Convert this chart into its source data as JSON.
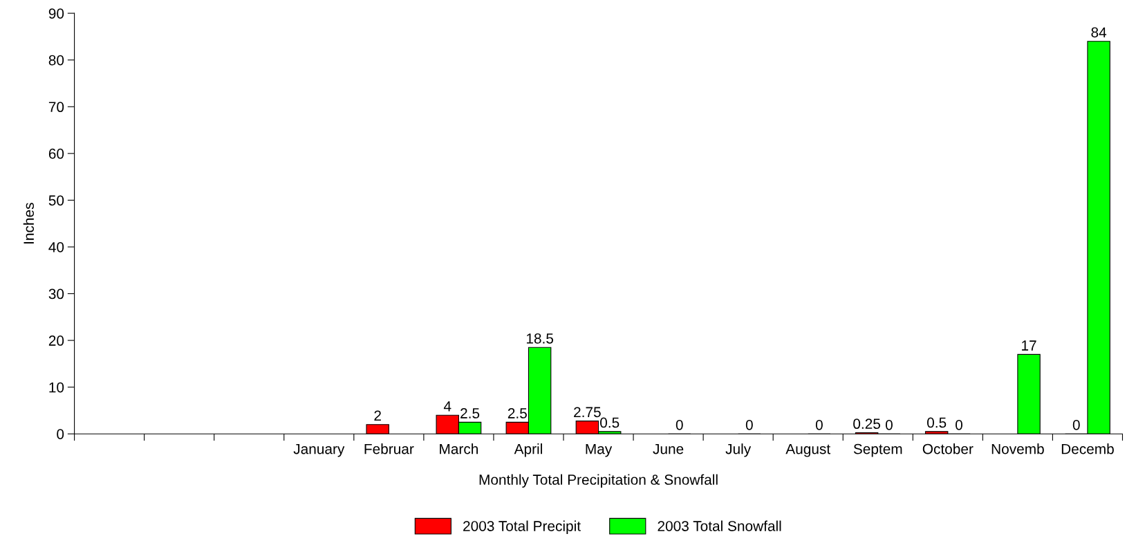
{
  "chart_data": {
    "type": "bar",
    "xlabel": "Monthly Total Precipitation & Snowfall",
    "ylabel": "Inches",
    "categories": [
      null,
      null,
      null,
      "January",
      "Februar",
      "March",
      "April",
      "May",
      "June",
      "July",
      "August",
      "Septem",
      "October",
      "Novemb",
      "Decemb"
    ],
    "series": [
      {
        "name": "2003 Total Precipit",
        "color": "#ff0000",
        "values": [
          null,
          null,
          null,
          null,
          2,
          4,
          2.5,
          2.75,
          null,
          null,
          null,
          0.25,
          0.5,
          null,
          0
        ]
      },
      {
        "name": "2003 Total Snowfall",
        "color": "#00ff00",
        "values": [
          null,
          null,
          null,
          null,
          null,
          2.5,
          18.5,
          0.5,
          0,
          0,
          0,
          0,
          0,
          17,
          84
        ]
      }
    ],
    "ylim": [
      0,
      90
    ],
    "yticks": [
      0,
      10,
      20,
      30,
      40,
      50,
      60,
      70,
      80,
      90
    ],
    "data_labels": true,
    "legend": "bottom",
    "grid": false
  }
}
